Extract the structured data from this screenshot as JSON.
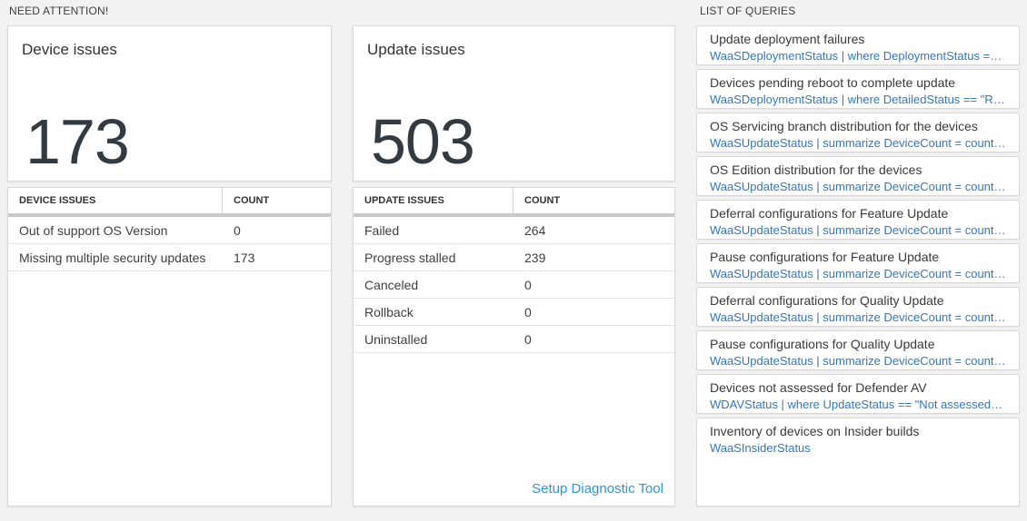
{
  "colors": {
    "page_background": "#f2f2f2",
    "big_number_color": "#333a40",
    "query_code_blue": "#3078bd",
    "setup_link_blue": "#2e96d6"
  },
  "need_attention": {
    "label": "NEED ATTENTION!",
    "device_tile": {
      "title": "Device issues",
      "big_number": "173"
    },
    "device_table": {
      "col1_header": "DEVICE ISSUES",
      "col2_header": "COUNT",
      "rows": [
        {
          "label": "Out of support OS Version",
          "count": "0"
        },
        {
          "label": "Missing multiple security updates",
          "count": "173"
        }
      ]
    },
    "update_tile": {
      "title": "Update issues",
      "big_number": "503"
    },
    "update_table": {
      "col1_header": "UPDATE ISSUES",
      "col2_header": "COUNT",
      "rows": [
        {
          "label": "Failed",
          "count": "264"
        },
        {
          "label": "Progress stalled",
          "count": "239"
        },
        {
          "label": "Canceled",
          "count": "0"
        },
        {
          "label": "Rollback",
          "count": "0"
        },
        {
          "label": "Uninstalled",
          "count": "0"
        }
      ],
      "footer_link": "Setup Diagnostic Tool"
    }
  },
  "queries": {
    "label": "LIST OF QUERIES",
    "items": [
      {
        "title": "Update deployment failures",
        "query": "WaaSDeploymentStatus | where DeploymentStatus == \"Failed\" |..."
      },
      {
        "title": "Devices pending reboot to complete update",
        "query": "WaaSDeploymentStatus | where DetailedStatus == \"Reboot pend..."
      },
      {
        "title": "OS Servicing branch distribution for the devices",
        "query": "WaaSUpdateStatus | summarize DeviceCount = count() by OSSer..."
      },
      {
        "title": "OS Edition distribution for the devices",
        "query": "WaaSUpdateStatus | summarize DeviceCount = count() by OSEdit..."
      },
      {
        "title": "Deferral configurations for Feature Update",
        "query": "WaaSUpdateStatus | summarize DeviceCount = count() by Featur..."
      },
      {
        "title": "Pause configurations for Feature Update",
        "query": "WaaSUpdateStatus | summarize DeviceCount = count() by Featur..."
      },
      {
        "title": "Deferral configurations for Quality Update",
        "query": "WaaSUpdateStatus | summarize DeviceCount = count() by Qualit..."
      },
      {
        "title": "Pause configurations for Quality Update",
        "query": "WaaSUpdateStatus | summarize DeviceCount = count() by Qualit..."
      },
      {
        "title": "Devices not assessed for Defender AV",
        "query": "WDAVStatus | where UpdateStatus == \"Not assessed\" | render ta..."
      },
      {
        "title": "Inventory of devices on Insider builds",
        "query": "WaaSInsiderStatus"
      }
    ]
  }
}
